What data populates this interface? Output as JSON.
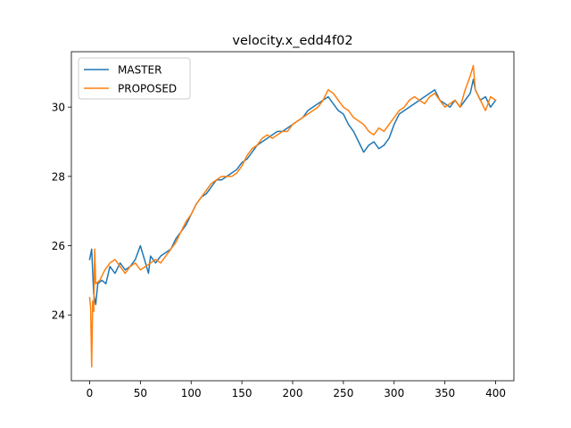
{
  "chart_data": {
    "type": "line",
    "title": "velocity.x_edd4f02",
    "xlabel": "",
    "ylabel": "",
    "xlim": [
      -18,
      418
    ],
    "ylim": [
      22.1,
      31.6
    ],
    "xticks": [
      0,
      50,
      100,
      150,
      200,
      250,
      300,
      350,
      400
    ],
    "yticks": [
      24,
      26,
      28,
      30
    ],
    "grid": false,
    "legend": "upper left",
    "series": [
      {
        "name": "MASTER",
        "color": "#1f77b4",
        "points": [
          [
            0,
            25.6
          ],
          [
            2,
            25.9
          ],
          [
            4,
            24.6
          ],
          [
            6,
            24.3
          ],
          [
            8,
            24.9
          ],
          [
            12,
            25.0
          ],
          [
            16,
            24.9
          ],
          [
            20,
            25.4
          ],
          [
            25,
            25.2
          ],
          [
            30,
            25.5
          ],
          [
            35,
            25.3
          ],
          [
            40,
            25.4
          ],
          [
            45,
            25.6
          ],
          [
            50,
            26.0
          ],
          [
            55,
            25.5
          ],
          [
            58,
            25.2
          ],
          [
            60,
            25.7
          ],
          [
            65,
            25.5
          ],
          [
            70,
            25.7
          ],
          [
            75,
            25.8
          ],
          [
            80,
            25.9
          ],
          [
            85,
            26.2
          ],
          [
            90,
            26.4
          ],
          [
            95,
            26.6
          ],
          [
            100,
            26.9
          ],
          [
            105,
            27.2
          ],
          [
            110,
            27.4
          ],
          [
            115,
            27.5
          ],
          [
            120,
            27.7
          ],
          [
            125,
            27.9
          ],
          [
            130,
            27.9
          ],
          [
            135,
            28.0
          ],
          [
            140,
            28.1
          ],
          [
            145,
            28.2
          ],
          [
            150,
            28.4
          ],
          [
            155,
            28.5
          ],
          [
            160,
            28.7
          ],
          [
            165,
            28.9
          ],
          [
            170,
            29.0
          ],
          [
            175,
            29.1
          ],
          [
            180,
            29.2
          ],
          [
            185,
            29.3
          ],
          [
            190,
            29.3
          ],
          [
            195,
            29.4
          ],
          [
            200,
            29.5
          ],
          [
            205,
            29.6
          ],
          [
            210,
            29.7
          ],
          [
            215,
            29.9
          ],
          [
            220,
            30.0
          ],
          [
            225,
            30.1
          ],
          [
            230,
            30.2
          ],
          [
            235,
            30.3
          ],
          [
            240,
            30.1
          ],
          [
            245,
            29.9
          ],
          [
            250,
            29.8
          ],
          [
            255,
            29.5
          ],
          [
            260,
            29.3
          ],
          [
            265,
            29.0
          ],
          [
            270,
            28.7
          ],
          [
            275,
            28.9
          ],
          [
            280,
            29.0
          ],
          [
            285,
            28.8
          ],
          [
            290,
            28.9
          ],
          [
            295,
            29.1
          ],
          [
            300,
            29.5
          ],
          [
            305,
            29.8
          ],
          [
            310,
            29.9
          ],
          [
            315,
            30.0
          ],
          [
            320,
            30.1
          ],
          [
            325,
            30.2
          ],
          [
            330,
            30.3
          ],
          [
            335,
            30.4
          ],
          [
            340,
            30.5
          ],
          [
            345,
            30.2
          ],
          [
            350,
            30.1
          ],
          [
            355,
            30.0
          ],
          [
            360,
            30.2
          ],
          [
            365,
            30.0
          ],
          [
            370,
            30.2
          ],
          [
            375,
            30.4
          ],
          [
            378,
            30.8
          ],
          [
            380,
            30.5
          ],
          [
            385,
            30.2
          ],
          [
            390,
            30.3
          ],
          [
            395,
            30.0
          ],
          [
            400,
            30.2
          ]
        ]
      },
      {
        "name": "PROPOSED",
        "color": "#ff7f0e",
        "points": [
          [
            0,
            24.5
          ],
          [
            1,
            24.2
          ],
          [
            2,
            22.5
          ],
          [
            3,
            24.4
          ],
          [
            4,
            24.1
          ],
          [
            5,
            25.9
          ],
          [
            6,
            24.9
          ],
          [
            10,
            25.0
          ],
          [
            15,
            25.3
          ],
          [
            20,
            25.5
          ],
          [
            25,
            25.6
          ],
          [
            30,
            25.4
          ],
          [
            35,
            25.2
          ],
          [
            40,
            25.4
          ],
          [
            45,
            25.5
          ],
          [
            50,
            25.3
          ],
          [
            55,
            25.4
          ],
          [
            60,
            25.5
          ],
          [
            65,
            25.6
          ],
          [
            70,
            25.5
          ],
          [
            75,
            25.7
          ],
          [
            80,
            25.9
          ],
          [
            85,
            26.1
          ],
          [
            90,
            26.4
          ],
          [
            95,
            26.7
          ],
          [
            100,
            26.9
          ],
          [
            105,
            27.2
          ],
          [
            110,
            27.4
          ],
          [
            115,
            27.6
          ],
          [
            120,
            27.8
          ],
          [
            125,
            27.9
          ],
          [
            130,
            28.0
          ],
          [
            135,
            28.0
          ],
          [
            140,
            28.0
          ],
          [
            145,
            28.1
          ],
          [
            150,
            28.3
          ],
          [
            155,
            28.6
          ],
          [
            160,
            28.8
          ],
          [
            165,
            28.9
          ],
          [
            170,
            29.1
          ],
          [
            175,
            29.2
          ],
          [
            180,
            29.1
          ],
          [
            185,
            29.2
          ],
          [
            190,
            29.3
          ],
          [
            195,
            29.3
          ],
          [
            200,
            29.5
          ],
          [
            205,
            29.6
          ],
          [
            210,
            29.7
          ],
          [
            215,
            29.8
          ],
          [
            220,
            29.9
          ],
          [
            225,
            30.0
          ],
          [
            230,
            30.2
          ],
          [
            235,
            30.5
          ],
          [
            240,
            30.4
          ],
          [
            245,
            30.2
          ],
          [
            250,
            30.0
          ],
          [
            255,
            29.9
          ],
          [
            260,
            29.7
          ],
          [
            265,
            29.6
          ],
          [
            270,
            29.5
          ],
          [
            275,
            29.3
          ],
          [
            280,
            29.2
          ],
          [
            285,
            29.4
          ],
          [
            290,
            29.3
          ],
          [
            295,
            29.5
          ],
          [
            300,
            29.7
          ],
          [
            305,
            29.9
          ],
          [
            310,
            30.0
          ],
          [
            315,
            30.2
          ],
          [
            320,
            30.3
          ],
          [
            325,
            30.2
          ],
          [
            330,
            30.1
          ],
          [
            335,
            30.3
          ],
          [
            340,
            30.4
          ],
          [
            345,
            30.2
          ],
          [
            350,
            30.0
          ],
          [
            355,
            30.1
          ],
          [
            360,
            30.2
          ],
          [
            365,
            30.0
          ],
          [
            370,
            30.5
          ],
          [
            375,
            30.9
          ],
          [
            378,
            31.2
          ],
          [
            380,
            30.5
          ],
          [
            385,
            30.2
          ],
          [
            390,
            29.9
          ],
          [
            395,
            30.3
          ],
          [
            400,
            30.2
          ]
        ]
      }
    ]
  }
}
